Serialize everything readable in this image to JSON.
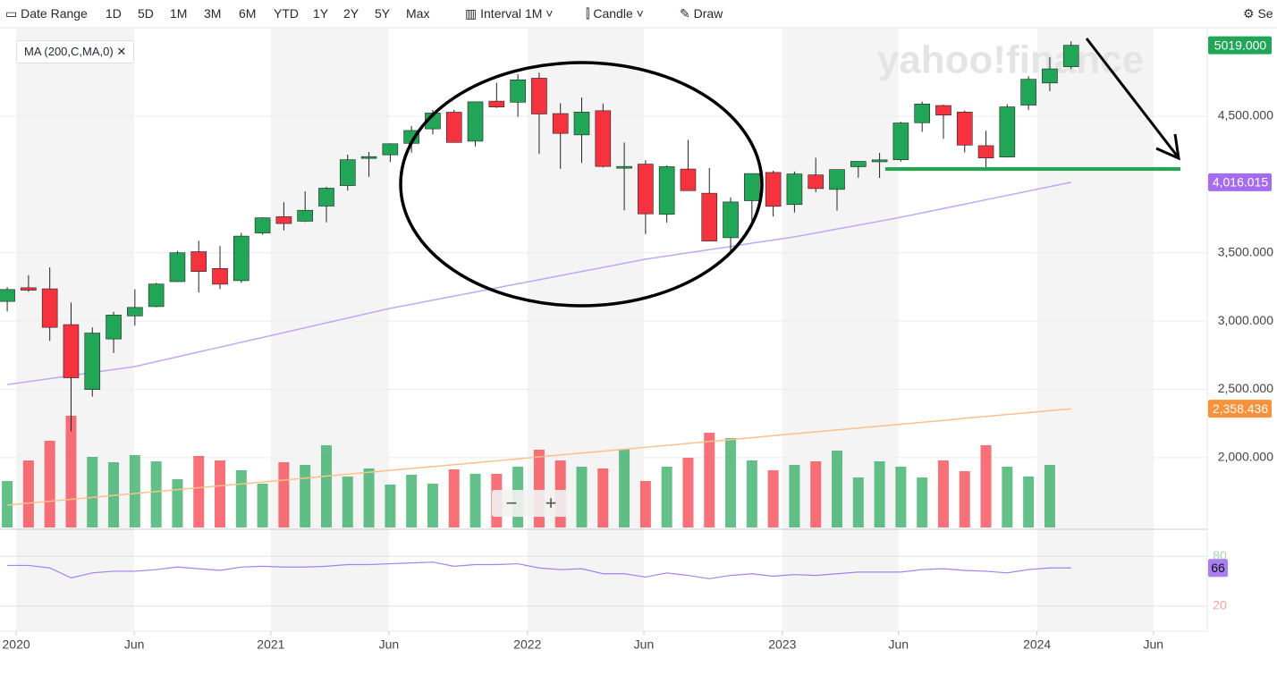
{
  "toolbar": {
    "date_range": "Date Range",
    "ranges": [
      "1D",
      "5D",
      "1M",
      "3M",
      "6M",
      "YTD",
      "1Y",
      "2Y",
      "5Y",
      "Max"
    ],
    "interval_label": "Interval",
    "interval": "1M",
    "chart_type": "Candle",
    "draw": "Draw",
    "settings": "Se"
  },
  "indicator_chip": "MA (200,C,MA,0)",
  "watermark": "yahoo!finance",
  "zoom": {
    "out": "−",
    "in": "+"
  },
  "chart_data": {
    "type": "candlestick",
    "up_color": "#21a557",
    "down_color": "#f5333f",
    "xlim": [
      -0.34,
      56.4
    ],
    "xticks": [
      {
        "value": 0.42,
        "label": "2020"
      },
      {
        "value": 5.97,
        "label": "Jun"
      },
      {
        "value": 12.39,
        "label": "2021"
      },
      {
        "value": 17.94,
        "label": "Jun"
      },
      {
        "value": 24.45,
        "label": "2022"
      },
      {
        "value": 29.92,
        "label": "Jun"
      },
      {
        "value": 36.43,
        "label": "2023"
      },
      {
        "value": 41.89,
        "label": "Jun"
      },
      {
        "value": 48.4,
        "label": "2024"
      },
      {
        "value": 53.87,
        "label": "Jun"
      }
    ],
    "ylim": [
      1489,
      5141
    ],
    "yticks": [
      {
        "value": 2000,
        "label": "2,000.000"
      },
      {
        "value": 2500,
        "label": "2,500.000"
      },
      {
        "value": 3000,
        "label": "3,000.000"
      },
      {
        "value": 3500,
        "label": "3,500.000"
      },
      {
        "value": 4500,
        "label": "4,500.000"
      }
    ],
    "open": [
      3144,
      3244,
      3236,
      2974,
      2499,
      2869,
      3038,
      3106,
      3289,
      3508,
      3385,
      3296,
      3645,
      3764,
      3731,
      3842,
      3992,
      4192,
      4217,
      4301,
      4407,
      4529,
      4317,
      4610,
      4602,
      4778,
      4519,
      4363,
      4540,
      4130,
      4149,
      3781,
      4113,
      3936,
      3610,
      3881,
      4088,
      3853,
      4070,
      3964,
      4130,
      4166,
      4181,
      4452,
      4578,
      4530,
      4284,
      4201,
      4581,
      4743,
      4862
    ],
    "high": [
      3248,
      3337,
      3393,
      3136,
      2954,
      3068,
      3233,
      3280,
      3514,
      3588,
      3550,
      3646,
      3760,
      3870,
      3950,
      3983,
      4219,
      4238,
      4302,
      4429,
      4546,
      4546,
      4608,
      4744,
      4808,
      4819,
      4595,
      4637,
      4593,
      4307,
      4178,
      4140,
      4325,
      4120,
      3905,
      4080,
      4101,
      4095,
      4195,
      4110,
      4170,
      4231,
      4458,
      4607,
      4584,
      4541,
      4393,
      4587,
      4793,
      4932,
      5048
    ],
    "low": [
      3070,
      3214,
      2855,
      2192,
      2447,
      2766,
      2966,
      3101,
      3285,
      3210,
      3234,
      3280,
      3633,
      3663,
      3725,
      3723,
      3955,
      4056,
      4164,
      4233,
      4367,
      4306,
      4279,
      4560,
      4495,
      4223,
      4115,
      4157,
      4124,
      3811,
      3637,
      3721,
      3955,
      3585,
      3492,
      3699,
      3765,
      3795,
      3943,
      3809,
      4049,
      4048,
      4168,
      4385,
      4335,
      4235,
      4104,
      4197,
      4546,
      4683,
      4845
    ],
    "close": [
      3231,
      3226,
      2954,
      2585,
      2912,
      3044,
      3100,
      3271,
      3500,
      3363,
      3270,
      3622,
      3756,
      3714,
      3811,
      3973,
      4181,
      4204,
      4298,
      4395,
      4523,
      4308,
      4605,
      4567,
      4766,
      4516,
      4374,
      4530,
      4132,
      4132,
      3785,
      4130,
      3955,
      3586,
      3872,
      4080,
      3840,
      4077,
      3970,
      4109,
      4169,
      4180,
      4450,
      4589,
      4508,
      4288,
      4194,
      4568,
      4770,
      4846,
      5019
    ],
    "last_tag": {
      "value": 5019,
      "label": "5019.000",
      "color": "#21a557"
    },
    "lines": [
      {
        "color": "#c3a6f5",
        "values": [
          2535,
          2557,
          2579,
          2601,
          2623,
          2645,
          2667,
          2703,
          2738,
          2774,
          2809,
          2845,
          2880,
          2916,
          2951,
          2987,
          3022,
          3058,
          3093,
          3123,
          3153,
          3183,
          3213,
          3243,
          3273,
          3303,
          3333,
          3363,
          3393,
          3423,
          3453,
          3476,
          3500,
          3523,
          3546,
          3570,
          3593,
          3616,
          3645,
          3674,
          3702,
          3731,
          3760,
          3792,
          3824,
          3856,
          3888,
          3920,
          3952,
          3984,
          4016
        ],
        "tag": {
          "value": 4016.015,
          "label": "4,016.015",
          "color": "#a56cf0"
        }
      },
      {
        "color": "#ffbf8a",
        "values": [
          1653,
          1667,
          1681,
          1695,
          1709,
          1724,
          1738,
          1752,
          1766,
          1780,
          1794,
          1808,
          1822,
          1836,
          1850,
          1865,
          1879,
          1893,
          1907,
          1921,
          1935,
          1949,
          1963,
          1977,
          1991,
          2006,
          2020,
          2034,
          2048,
          2062,
          2076,
          2090,
          2104,
          2118,
          2132,
          2147,
          2161,
          2175,
          2189,
          2203,
          2217,
          2231,
          2245,
          2259,
          2273,
          2288,
          2302,
          2316,
          2330,
          2344,
          2358
        ],
        "tag": {
          "value": 2358.436,
          "label": "2,358.436",
          "color": "#f7923a"
        }
      }
    ],
    "volume": {
      "vlim": [
        0,
        160
      ],
      "values": [
        52,
        75,
        97,
        125,
        79,
        73,
        81,
        74,
        54,
        80,
        75,
        64,
        49,
        73,
        70,
        92,
        57,
        66,
        48,
        59,
        49,
        65,
        60,
        60,
        68,
        87,
        75,
        68,
        66,
        88,
        52,
        68,
        78,
        106,
        100,
        75,
        64,
        70,
        74,
        86,
        56,
        74,
        68,
        56,
        75,
        63,
        92,
        68,
        57,
        70,
        null
      ]
    },
    "rsi": {
      "color": "#a77ff0",
      "ylim": [
        -9,
        106
      ],
      "yticks": [
        20,
        80
      ],
      "tick_colors": [
        "#f5a3a3",
        "#9bd6ae"
      ],
      "values": [
        69,
        69,
        66,
        54,
        60,
        62,
        62,
        64,
        67,
        65,
        63,
        67,
        68,
        67,
        67,
        68,
        70,
        70,
        71,
        72,
        73,
        68,
        70,
        70,
        71,
        66,
        64,
        65,
        59,
        59,
        55,
        60,
        57,
        53,
        57,
        59,
        56,
        58,
        57,
        59,
        61,
        61,
        61,
        64,
        65,
        63,
        62,
        60,
        64,
        66,
        66
      ],
      "tag": {
        "value": 66,
        "label": "66"
      }
    }
  }
}
